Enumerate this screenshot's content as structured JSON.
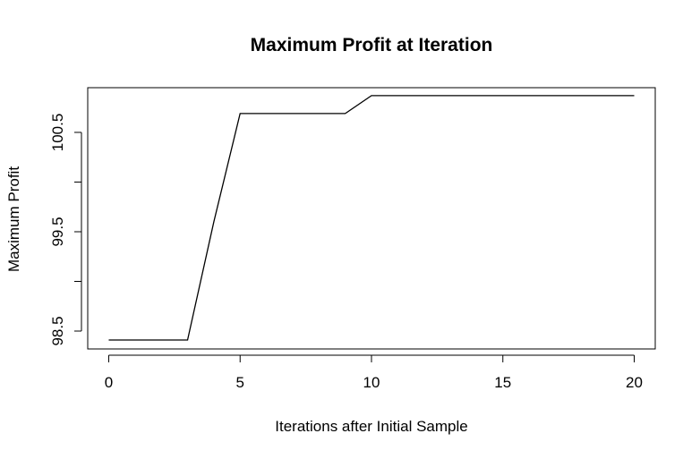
{
  "chart_data": {
    "type": "line",
    "title": "Maximum Profit at Iteration",
    "xlabel": "Iterations after Initial Sample",
    "ylabel": "Maximum Profit",
    "xlim": [
      -0.8,
      20.8
    ],
    "ylim": [
      98.32,
      100.95
    ],
    "x_ticks": [
      0,
      5,
      10,
      15,
      20
    ],
    "x_tick_labels": [
      "0",
      "5",
      "10",
      "15",
      "20"
    ],
    "y_ticks": [
      98.5,
      99.0,
      99.5,
      100.0,
      100.5
    ],
    "y_tick_labels": [
      "98.5",
      "",
      "99.5",
      "",
      "100.5"
    ],
    "grid": false,
    "legend": "none",
    "line_color": "#000000",
    "series": [
      {
        "x": [
          0,
          1,
          2,
          3,
          4,
          5,
          6,
          7,
          8,
          9,
          10,
          11,
          12,
          13,
          14,
          15,
          16,
          17,
          18,
          19,
          20
        ],
        "values": [
          98.41,
          98.41,
          98.41,
          98.41,
          99.6,
          100.69,
          100.69,
          100.69,
          100.69,
          100.69,
          100.87,
          100.87,
          100.87,
          100.87,
          100.87,
          100.87,
          100.87,
          100.87,
          100.87,
          100.87,
          100.87
        ]
      }
    ]
  }
}
